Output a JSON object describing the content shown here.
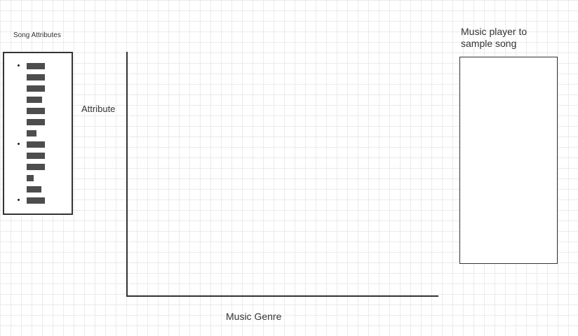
{
  "song_attributes": {
    "title": "Song Attributes",
    "items": [
      {
        "bullet": true,
        "level": 1.0
      },
      {
        "bullet": false,
        "level": 1.0
      },
      {
        "bullet": false,
        "level": 1.0
      },
      {
        "bullet": false,
        "level": 0.85
      },
      {
        "bullet": false,
        "level": 1.0
      },
      {
        "bullet": false,
        "level": 1.0
      },
      {
        "bullet": false,
        "level": 0.55
      },
      {
        "bullet": true,
        "level": 1.0
      },
      {
        "bullet": false,
        "level": 1.0
      },
      {
        "bullet": false,
        "level": 1.0
      },
      {
        "bullet": false,
        "level": 0.4
      },
      {
        "bullet": false,
        "level": 0.8
      },
      {
        "bullet": true,
        "level": 1.0
      }
    ]
  },
  "plot": {
    "y_label": "Attribute",
    "x_label": "Music Genre"
  },
  "player": {
    "title": "Music player to sample song"
  }
}
